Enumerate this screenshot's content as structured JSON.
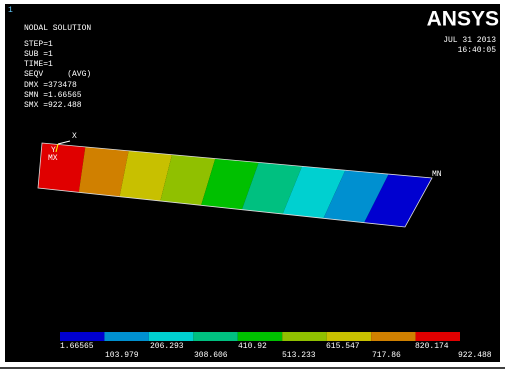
{
  "viewport_number": "1",
  "info": {
    "title": "NODAL SOLUTION",
    "lines": [
      "STEP=1",
      "SUB =1",
      "TIME=1",
      "SEQV     (AVG)",
      "DMX =373478",
      "SMN =1.66565",
      "SMX =922.488"
    ]
  },
  "logo": "ANSYS",
  "date": "JUL 31 2013",
  "time": "16:40:05",
  "axis_labels": {
    "x": "X",
    "y": "Y"
  },
  "markers": {
    "max": "MX",
    "min": "MN"
  },
  "legend": {
    "top": [
      "1.66565",
      "206.293",
      "410.92",
      "615.547",
      "820.174"
    ],
    "bottom": [
      "103.979",
      "308.606",
      "513.233",
      "717.86",
      "922.488"
    ]
  }
}
